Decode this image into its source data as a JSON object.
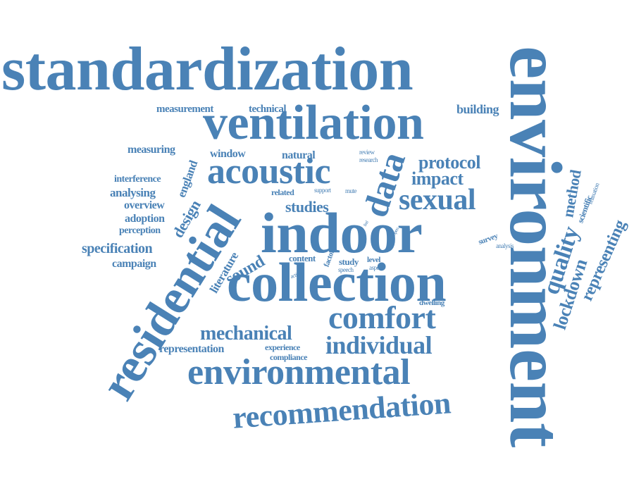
{
  "color": "#4a82b6",
  "words": {
    "standardization": "standardization",
    "environment": "environment",
    "ventilation": "ventilation",
    "indoor": "indoor",
    "collection": "collection",
    "residential": "residential",
    "environmental": "environmental",
    "recommendation": "recommendation",
    "acoustic": "acoustic",
    "data": "data",
    "sexual": "sexual",
    "comfort": "comfort",
    "individual": "individual",
    "mechanical": "mechanical",
    "protocol": "protocol",
    "impact": "impact",
    "quality": "quality",
    "lockdown": "lockdown",
    "representing": "representing",
    "method": "method",
    "building": "building",
    "measurement": "measurement",
    "technical": "technical",
    "measuring": "measuring",
    "window": "window",
    "natural": "natural",
    "review": "review",
    "research": "research",
    "interference": "interference",
    "analysing": "analysing",
    "overview": "overview",
    "adoption": "adoption",
    "perception": "perception",
    "specification": "specification",
    "campaign": "campaign",
    "england": "england",
    "design": "design",
    "literature": "literature",
    "sound": "sound",
    "studies": "studies",
    "related": "related",
    "support": "support",
    "mute": "mute",
    "content": "content",
    "factor": "factor",
    "study": "study",
    "level": "level",
    "speech": "speech",
    "aspect": "aspect",
    "activity": "activity",
    "find": "find",
    "open": "open",
    "survey": "survey",
    "analysis": "analysis",
    "scientific": "scientific",
    "relaxation": "relaxation",
    "dwelling": "dwelling",
    "representation": "representation",
    "experience": "experience",
    "compliance": "compliance"
  }
}
